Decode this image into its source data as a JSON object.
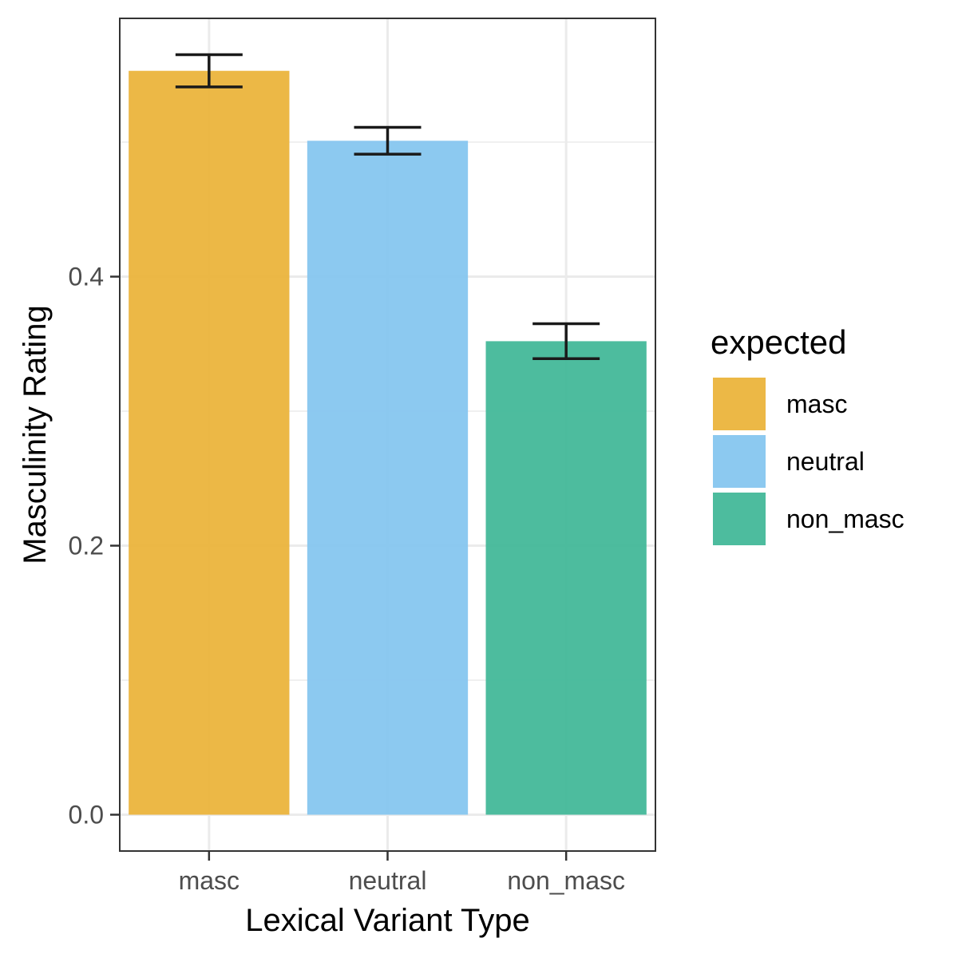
{
  "chart_data": {
    "type": "bar",
    "categories": [
      "masc",
      "neutral",
      "non_masc"
    ],
    "values": [
      0.553,
      0.501,
      0.352
    ],
    "error_low": [
      0.541,
      0.491,
      0.339
    ],
    "error_high": [
      0.565,
      0.511,
      0.365
    ],
    "colors": [
      "#EBB43C",
      "#86C6EF",
      "#43B899"
    ],
    "xlabel": "Lexical Variant Type",
    "ylabel": "Masculinity Rating",
    "ylim": [
      -0.027,
      0.592
    ],
    "yticks": [
      0.0,
      0.2,
      0.4
    ],
    "ytick_labels": [
      "0.0",
      "0.2",
      "0.4"
    ],
    "grid": true,
    "legend": {
      "title": "expected",
      "placement": "right",
      "entries": [
        "masc",
        "neutral",
        "non_masc"
      ]
    }
  }
}
